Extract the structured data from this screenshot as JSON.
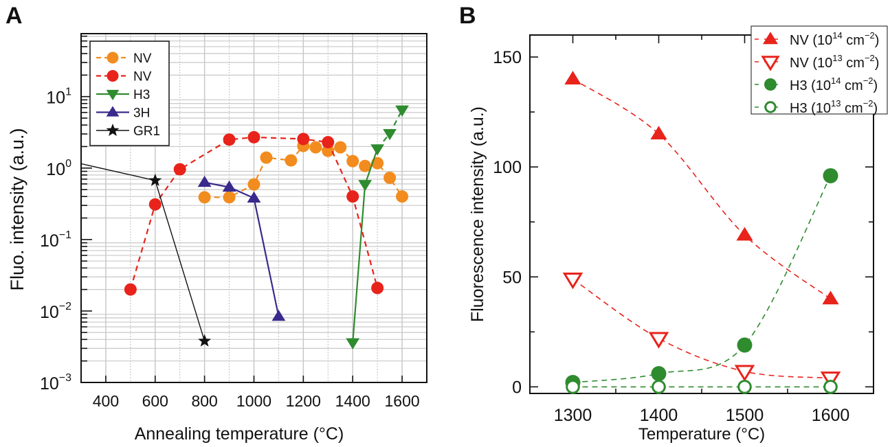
{
  "chart_data": [
    {
      "panel_label": "A",
      "type": "line",
      "xlabel": "Annealing temperature (°C)",
      "ylabel": "Fluo. intensity (a.u.)",
      "xlim": [
        300,
        1700
      ],
      "ylim": [
        0.001,
        76
      ],
      "yscale": "log",
      "xticks": [
        400,
        600,
        800,
        1000,
        1200,
        1400,
        1600
      ],
      "yticks": [
        {
          "base": "10",
          "exp": "−3",
          "value": 0.001
        },
        {
          "base": "10",
          "exp": "−2",
          "value": 0.01
        },
        {
          "base": "10",
          "exp": "−1",
          "value": 0.1
        },
        {
          "base": "10",
          "exp": "0",
          "value": 1
        },
        {
          "base": "10",
          "exp": "1",
          "value": 10
        }
      ],
      "grid": true,
      "legend_position": "top-left",
      "series": [
        {
          "name": "NV",
          "color": "#f28c1e",
          "marker": "circle",
          "line": "dashed",
          "x": [
            800,
            900,
            1000,
            1050,
            1150,
            1200,
            1250,
            1300,
            1350,
            1400,
            1450,
            1500,
            1550,
            1600
          ],
          "y": [
            0.39,
            0.39,
            0.59,
            1.4,
            1.28,
            2.04,
            1.95,
            1.74,
            1.95,
            1.25,
            1.07,
            1.17,
            0.73,
            0.4
          ]
        },
        {
          "name": "NV",
          "color": "#e8231b",
          "marker": "circle",
          "line": "dashed",
          "x": [
            500,
            600,
            700,
            900,
            1000,
            1200,
            1300,
            1400,
            1500
          ],
          "y": [
            0.02,
            0.31,
            0.96,
            2.5,
            2.7,
            2.55,
            2.3,
            0.4,
            0.021
          ]
        },
        {
          "name": "H3",
          "color": "#2e8b2e",
          "marker": "triangle-down",
          "line": "solid-dashed",
          "x": [
            1400,
            1450,
            1500,
            1550,
            1600
          ],
          "y": [
            0.0036,
            0.59,
            1.86,
            3.04,
            6.5
          ]
        },
        {
          "name": "3H",
          "color": "#3a2a8c",
          "marker": "triangle-up",
          "line": "solid",
          "x": [
            800,
            900,
            1000,
            1100
          ],
          "y": [
            0.63,
            0.54,
            0.38,
            0.0084
          ]
        },
        {
          "name": "GR1",
          "color": "#111111",
          "marker": "star",
          "line": "solid-thin",
          "x": [
            300,
            600,
            800
          ],
          "y": [
            1.15,
            0.67,
            0.0038
          ]
        }
      ]
    },
    {
      "panel_label": "B",
      "type": "scatter",
      "xlabel": "Temperature (°C)",
      "ylabel": "Fluorescence intensity (a.u.)",
      "xlim": [
        1250,
        1650
      ],
      "ylim": [
        -3,
        160
      ],
      "xticks": [
        1300,
        1400,
        1500,
        1600
      ],
      "yticks": [
        0,
        50,
        100,
        150
      ],
      "grid": false,
      "legend_position": "top-right",
      "series": [
        {
          "name": "NV (10^14 cm^−2)",
          "color": "#e8231b",
          "marker": "triangle-up-filled",
          "fit": "dashed",
          "x": [
            1300,
            1400,
            1500,
            1600
          ],
          "y": [
            140,
            115,
            69,
            40
          ]
        },
        {
          "name": "NV (10^13 cm^−2)",
          "color": "#e8231b",
          "marker": "triangle-down-open",
          "fit": "dashed",
          "x": [
            1300,
            1400,
            1500,
            1600
          ],
          "y": [
            49,
            22,
            7,
            4
          ]
        },
        {
          "name": "H3 (10^14 cm^−2)",
          "color": "#2e8b2e",
          "marker": "circle-filled",
          "fit": "dashed",
          "x": [
            1300,
            1400,
            1500,
            1600
          ],
          "y": [
            2,
            6,
            19,
            96
          ]
        },
        {
          "name": "H3 (10^13 cm^−2)",
          "color": "#2e8b2e",
          "marker": "circle-open",
          "fit": "dashed",
          "x": [
            1300,
            1400,
            1500,
            1600
          ],
          "y": [
            0,
            0,
            0,
            0
          ]
        }
      ]
    }
  ]
}
